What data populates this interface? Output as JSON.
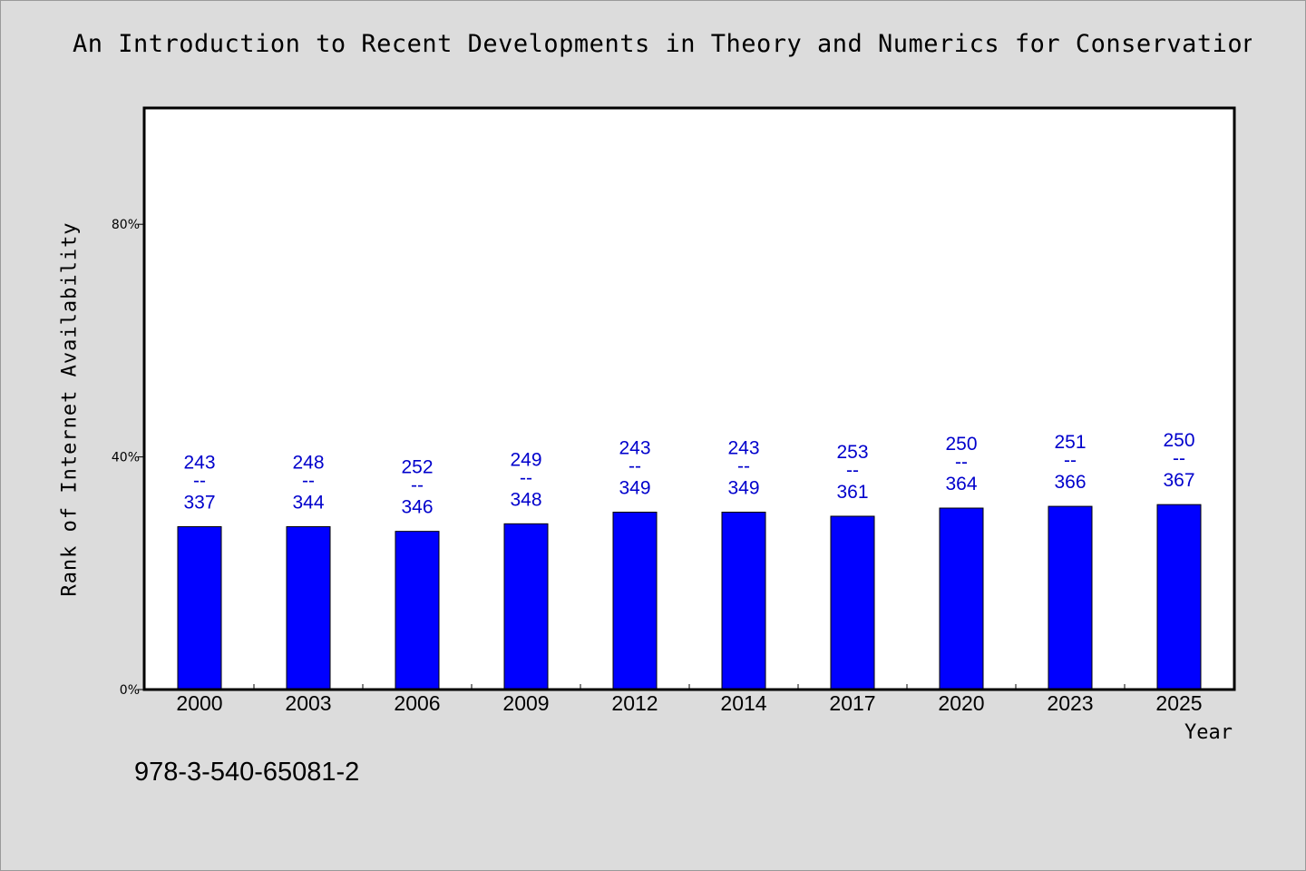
{
  "chart_data": {
    "type": "bar",
    "title": "An Introduction to Recent Developments in Theory and Numerics for Conservation L",
    "xlabel": "Year",
    "ylabel": "Rank of Internet Availability",
    "ylim": [
      0,
      100
    ],
    "y_ticks": [
      {
        "value": 0,
        "label": "0%"
      },
      {
        "value": 40,
        "label": "40%"
      },
      {
        "value": 80,
        "label": "80%"
      }
    ],
    "categories": [
      "2000",
      "2003",
      "2006",
      "2009",
      "2012",
      "2014",
      "2017",
      "2020",
      "2023",
      "2025"
    ],
    "values": [
      28.0,
      28.0,
      27.2,
      28.5,
      30.5,
      30.5,
      29.8,
      31.2,
      31.5,
      31.8
    ],
    "data_labels": [
      {
        "top": "243",
        "sep": "--",
        "bottom": "337"
      },
      {
        "top": "248",
        "sep": "--",
        "bottom": "344"
      },
      {
        "top": "252",
        "sep": "--",
        "bottom": "346"
      },
      {
        "top": "249",
        "sep": "--",
        "bottom": "348"
      },
      {
        "top": "243",
        "sep": "--",
        "bottom": "349"
      },
      {
        "top": "243",
        "sep": "--",
        "bottom": "349"
      },
      {
        "top": "253",
        "sep": "--",
        "bottom": "361"
      },
      {
        "top": "250",
        "sep": "--",
        "bottom": "364"
      },
      {
        "top": "251",
        "sep": "--",
        "bottom": "366"
      },
      {
        "top": "250",
        "sep": "--",
        "bottom": "367"
      }
    ],
    "bar_color": "#0000ff",
    "label_color": "#0000cc",
    "grid": false,
    "legend": "none"
  },
  "footer": {
    "isbn": "978-3-540-65081-2"
  }
}
